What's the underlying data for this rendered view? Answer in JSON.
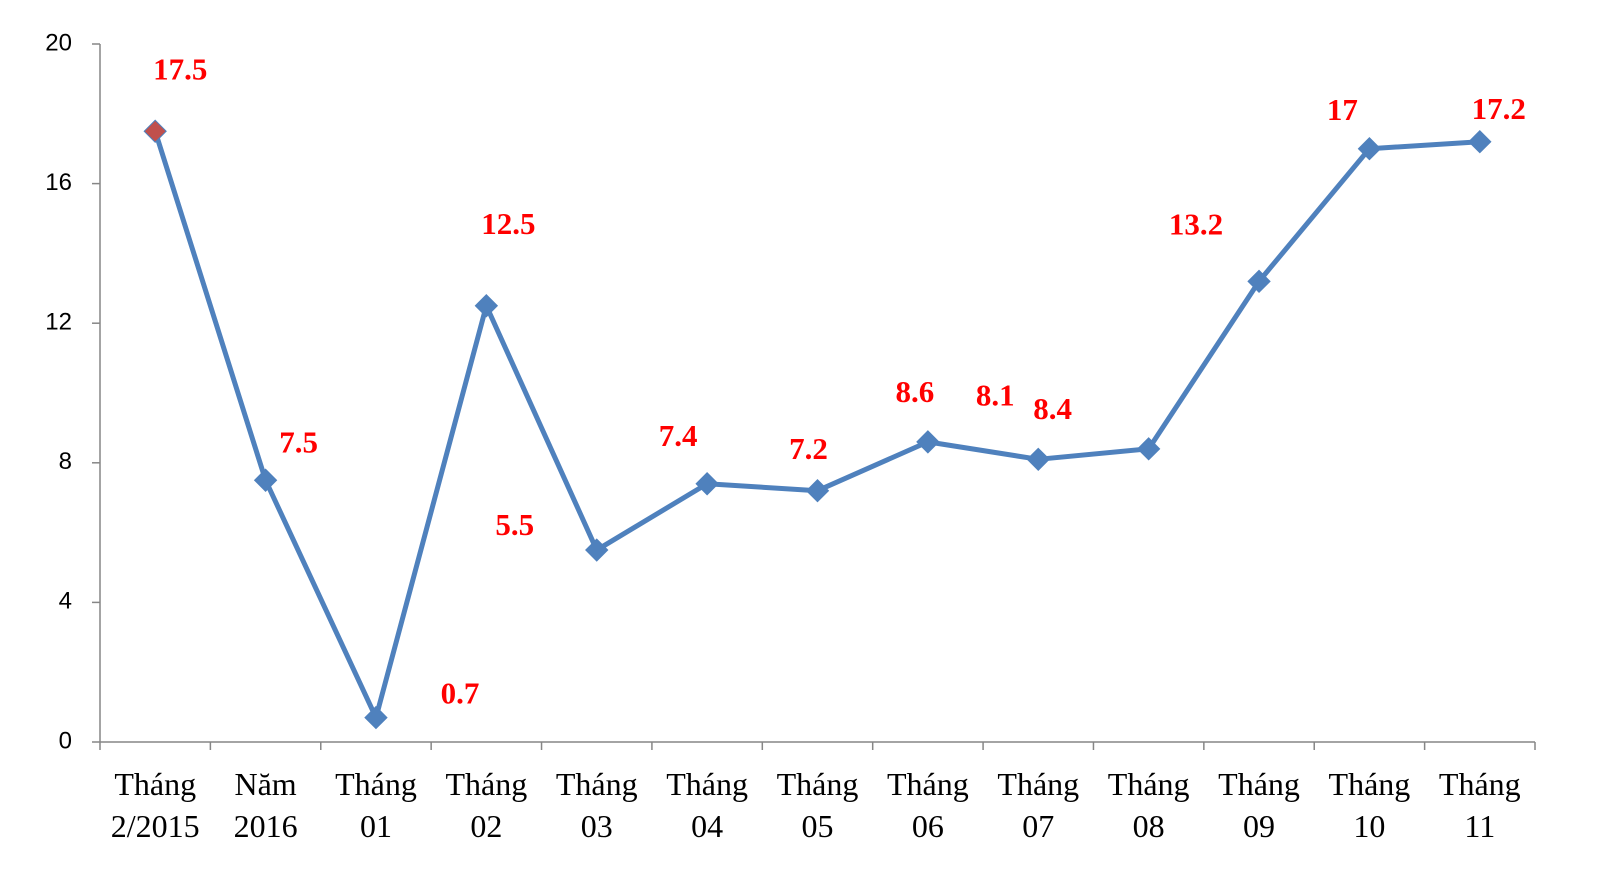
{
  "chart_data": {
    "type": "line",
    "categories": [
      [
        "Tháng",
        "2/2015"
      ],
      [
        "Năm",
        "2016"
      ],
      [
        "Tháng",
        "01"
      ],
      [
        "Tháng",
        "02"
      ],
      [
        "Tháng",
        "03"
      ],
      [
        "Tháng",
        "04"
      ],
      [
        "Tháng",
        "05"
      ],
      [
        "Tháng",
        "06"
      ],
      [
        "Tháng",
        "07"
      ],
      [
        "Tháng",
        "08"
      ],
      [
        "Tháng",
        "09"
      ],
      [
        "Tháng",
        "10"
      ],
      [
        "Tháng",
        "11"
      ]
    ],
    "values": [
      17.5,
      7.5,
      0.7,
      12.5,
      5.5,
      7.4,
      7.2,
      8.6,
      8.1,
      8.4,
      13.2,
      17,
      17.2
    ],
    "color": "#4f81bd",
    "marker_colors": [
      "#c0504d",
      "#4f81bd",
      "#4f81bd",
      "#4f81bd",
      "#4f81bd",
      "#4f81bd",
      "#4f81bd",
      "#4f81bd",
      "#4f81bd",
      "#4f81bd",
      "#4f81bd",
      "#4f81bd",
      "#4f81bd"
    ],
    "value_label_color": "#ff0000",
    "ylim": [
      0,
      20
    ],
    "yticks": [
      0,
      4,
      8,
      12,
      16,
      20
    ],
    "grid": false
  }
}
